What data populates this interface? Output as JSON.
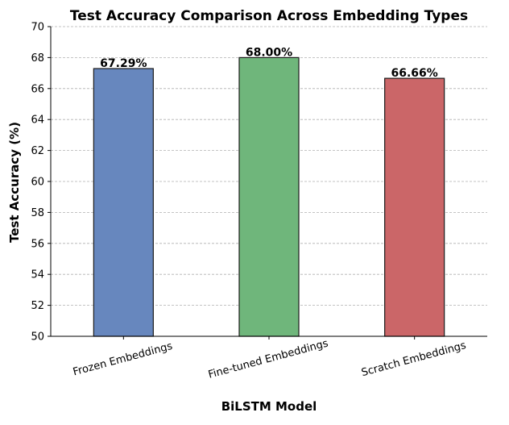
{
  "chart_data": {
    "type": "bar",
    "title": "Test Accuracy Comparison Across Embedding Types",
    "xlabel": "BiLSTM Model",
    "ylabel": "Test Accuracy (%)",
    "categories": [
      "Frozen Embeddings",
      "Fine-tuned Embeddings",
      "Scratch Embeddings"
    ],
    "values": [
      67.29,
      68.0,
      66.66
    ],
    "value_labels": [
      "67.29%",
      "68.00%",
      "66.66%"
    ],
    "colors": [
      "#6787be",
      "#6fb67b",
      "#cb6668"
    ],
    "ylim": [
      50,
      70
    ],
    "yticks": [
      50,
      52,
      54,
      56,
      58,
      60,
      62,
      64,
      66,
      68,
      70
    ],
    "grid": "y-dashed",
    "legend": "none"
  }
}
